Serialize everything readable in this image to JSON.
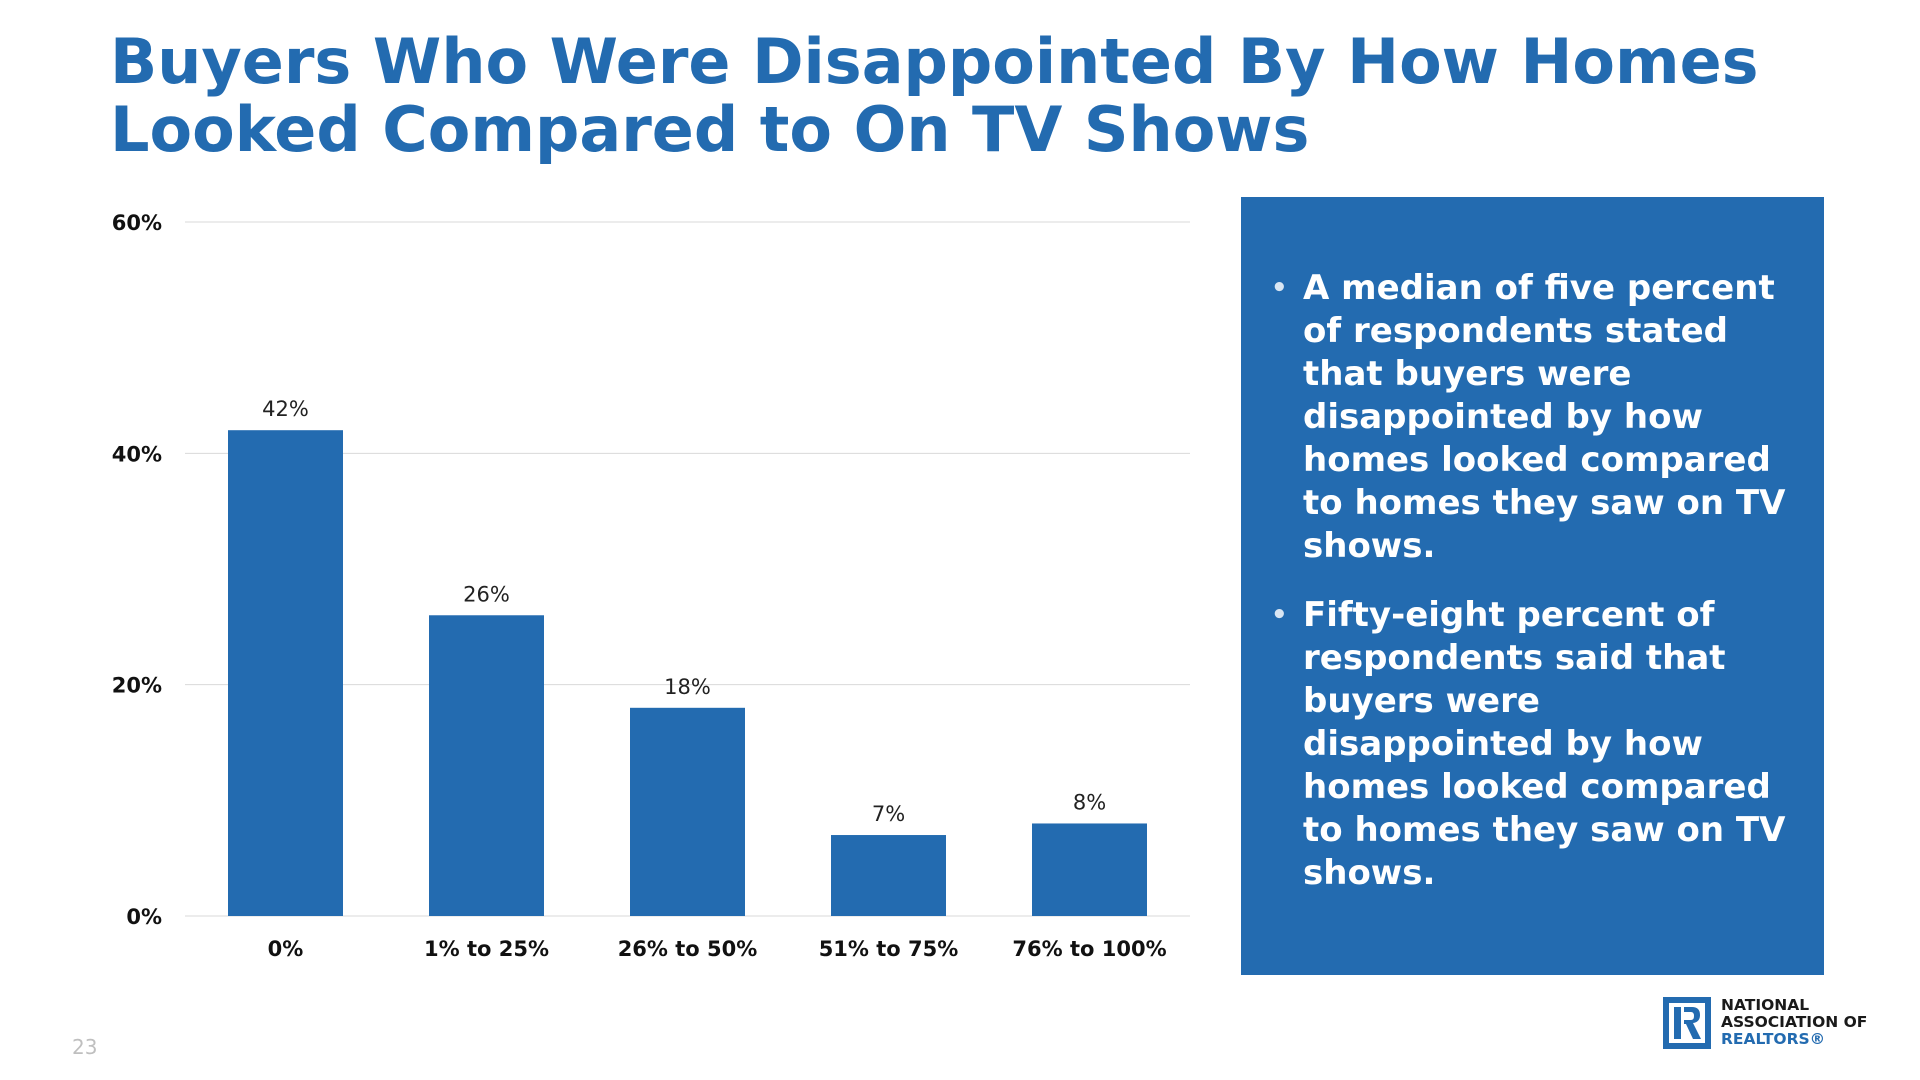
{
  "title": {
    "line1": "Buyers Who Were Disappointed By How Homes",
    "line2": "Looked Compared to On TV Shows"
  },
  "chart_data": {
    "type": "bar",
    "categories": [
      "0%",
      "1% to 25%",
      "26% to 50%",
      "51% to 75%",
      "76% to 100%"
    ],
    "values": [
      42,
      26,
      18,
      7,
      8
    ],
    "data_labels": [
      "42%",
      "26%",
      "18%",
      "7%",
      "8%"
    ],
    "ylim": [
      0,
      60
    ],
    "yticks": [
      0,
      20,
      40,
      60
    ],
    "ytick_labels": [
      "0%",
      "20%",
      "40%",
      "60%"
    ],
    "grid": true,
    "bar_color": "#236bb0"
  },
  "panel": {
    "background": "#236bb0",
    "bullets": [
      "A median of five percent of respondents stated that buyers were disappointed by how homes looked compared to homes they saw on TV shows.",
      "Fifty-eight percent of respondents said that buyers were disappointed by how homes looked compared to homes they saw on TV shows."
    ]
  },
  "footer": {
    "page_number": "23",
    "logo_lines": [
      "NATIONAL",
      "ASSOCIATION OF",
      "REALTORS®"
    ]
  },
  "colors": {
    "accent": "#236bb0",
    "text": "#111111"
  }
}
